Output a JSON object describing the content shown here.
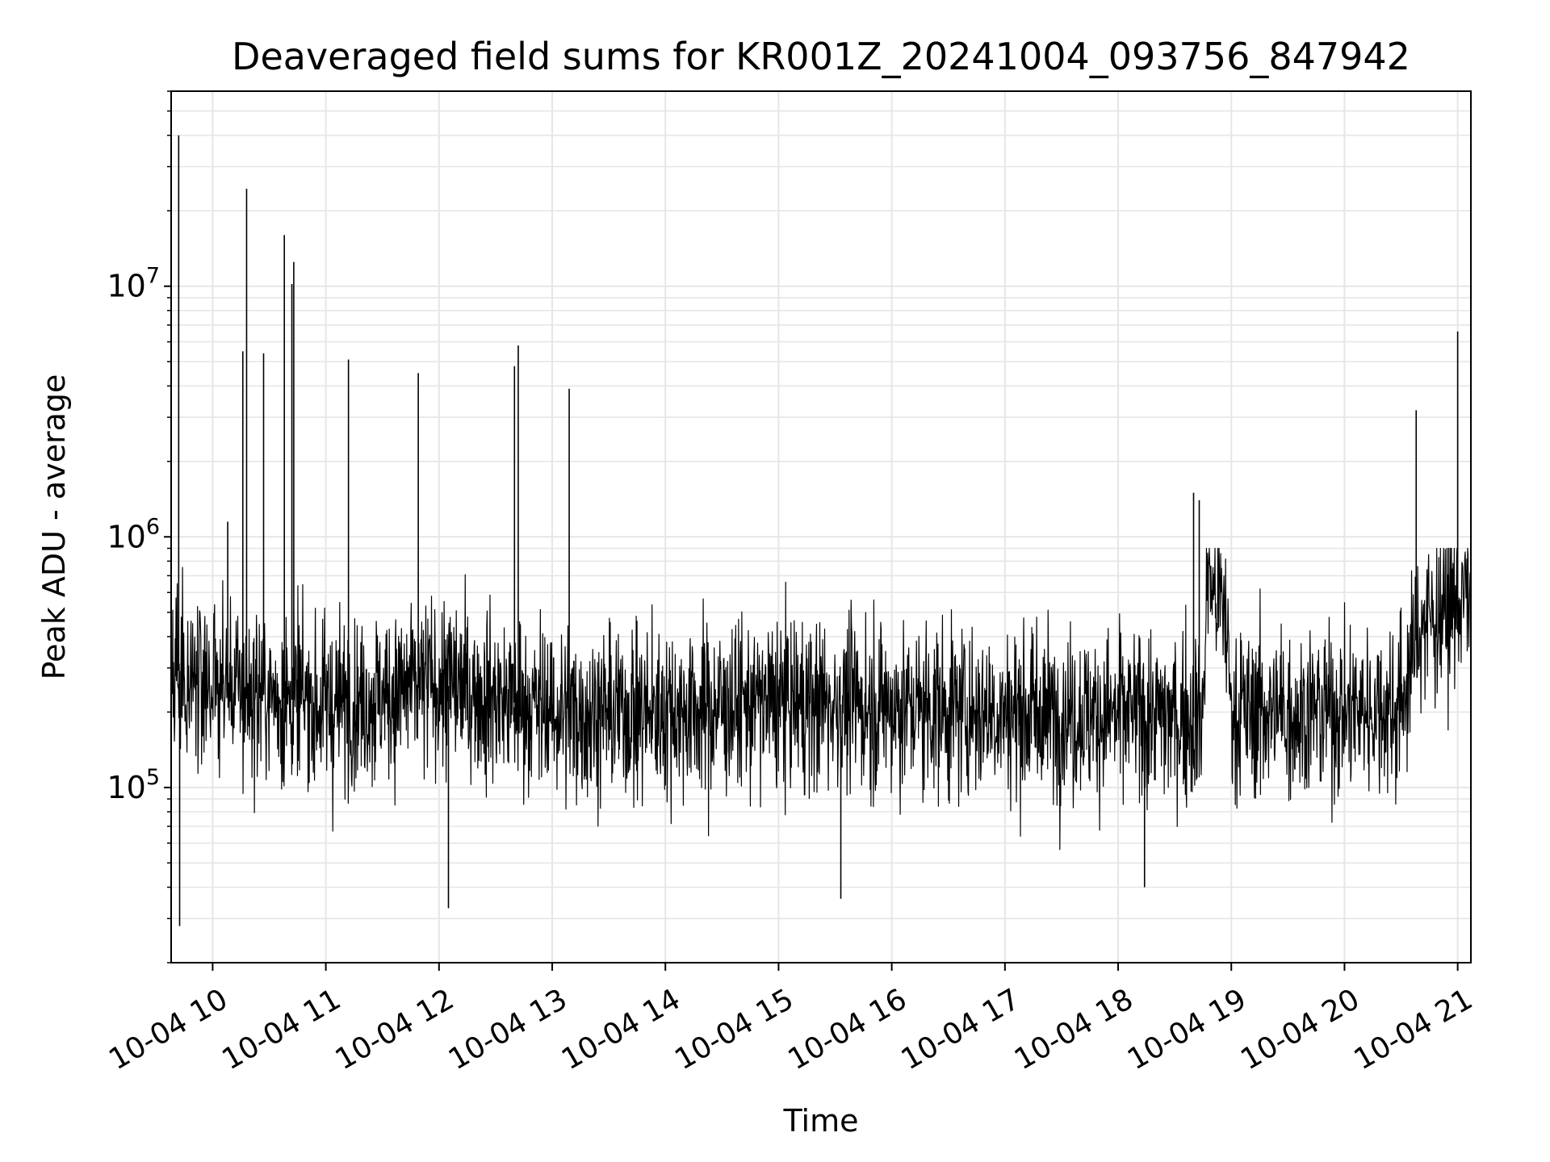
{
  "chart_data": {
    "type": "line",
    "title": "Deaveraged field sums for KR001Z_20241004_093756_847942",
    "xlabel": "Time",
    "ylabel": "Peak ADU - average",
    "x_axis": {
      "kind": "time",
      "min": "2024-10-04T09:38:00",
      "max": "2024-10-04T21:07:00",
      "ticks": [
        "2024-10-04T10:00",
        "2024-10-04T11:00",
        "2024-10-04T12:00",
        "2024-10-04T13:00",
        "2024-10-04T14:00",
        "2024-10-04T15:00",
        "2024-10-04T16:00",
        "2024-10-04T17:00",
        "2024-10-04T18:00",
        "2024-10-04T19:00",
        "2024-10-04T20:00",
        "2024-10-04T21:00"
      ],
      "tick_labels": [
        "10-04 10",
        "10-04 11",
        "10-04 12",
        "10-04 13",
        "10-04 14",
        "10-04 15",
        "10-04 16",
        "10-04 17",
        "10-04 18",
        "10-04 19",
        "10-04 20",
        "10-04 21"
      ],
      "tick_label_rotation_deg": 30
    },
    "y_axis": {
      "scale": "log",
      "ylim": [
        20000,
        60000000
      ],
      "major_ticks": [
        100000,
        1000000,
        10000000
      ],
      "major_tick_labels": [
        {
          "base": "10",
          "exp": "5"
        },
        {
          "base": "10",
          "exp": "6"
        },
        {
          "base": "10",
          "exp": "7"
        }
      ]
    },
    "grid": true,
    "series_color": "#000000",
    "baseline_profile": [
      {
        "x": "2024-10-04T09:38:00",
        "y": 300000
      },
      {
        "x": "2024-10-04T10:00:00",
        "y": 260000
      },
      {
        "x": "2024-10-04T11:00:00",
        "y": 210000
      },
      {
        "x": "2024-10-04T12:00:00",
        "y": 260000
      },
      {
        "x": "2024-10-04T13:00:00",
        "y": 200000
      },
      {
        "x": "2024-10-04T14:00:00",
        "y": 200000
      },
      {
        "x": "2024-10-04T15:00:00",
        "y": 220000
      },
      {
        "x": "2024-10-04T16:00:00",
        "y": 210000
      },
      {
        "x": "2024-10-04T17:00:00",
        "y": 200000
      },
      {
        "x": "2024-10-04T18:00:00",
        "y": 195000
      },
      {
        "x": "2024-10-04T18:45:00",
        "y": 190000
      },
      {
        "x": "2024-10-04T18:47:00",
        "y": 700000
      },
      {
        "x": "2024-10-04T18:57:00",
        "y": 500000
      },
      {
        "x": "2024-10-04T19:00:00",
        "y": 200000
      },
      {
        "x": "2024-10-04T19:40:00",
        "y": 200000
      },
      {
        "x": "2024-10-04T20:30:00",
        "y": 210000
      },
      {
        "x": "2024-10-04T20:40:00",
        "y": 450000
      },
      {
        "x": "2024-10-04T21:07:00",
        "y": 600000
      }
    ],
    "spikes": [
      {
        "x": "2024-10-04T09:42:00",
        "y": 40000000
      },
      {
        "x": "2024-10-04T09:42:30",
        "y": 28000
      },
      {
        "x": "2024-10-04T10:08:00",
        "y": 1150000
      },
      {
        "x": "2024-10-04T10:16:00",
        "y": 5500000
      },
      {
        "x": "2024-10-04T10:18:00",
        "y": 24500000
      },
      {
        "x": "2024-10-04T10:27:00",
        "y": 5400000
      },
      {
        "x": "2024-10-04T10:38:00",
        "y": 16000000
      },
      {
        "x": "2024-10-04T10:42:00",
        "y": 10200000
      },
      {
        "x": "2024-10-04T10:43:00",
        "y": 12500000
      },
      {
        "x": "2024-10-04T11:12:00",
        "y": 5100000
      },
      {
        "x": "2024-10-04T11:49:00",
        "y": 4500000
      },
      {
        "x": "2024-10-04T12:40:00",
        "y": 4800000
      },
      {
        "x": "2024-10-04T12:42:00",
        "y": 5800000
      },
      {
        "x": "2024-10-04T13:09:00",
        "y": 3900000
      },
      {
        "x": "2024-10-04T12:05:00",
        "y": 33000
      },
      {
        "x": "2024-10-04T15:33:00",
        "y": 36000
      },
      {
        "x": "2024-10-04T18:14:00",
        "y": 40000
      },
      {
        "x": "2024-10-04T18:40:00",
        "y": 1500000
      },
      {
        "x": "2024-10-04T18:43:00",
        "y": 1400000
      },
      {
        "x": "2024-10-04T20:38:00",
        "y": 3200000
      },
      {
        "x": "2024-10-04T21:00:00",
        "y": 6600000
      }
    ]
  }
}
